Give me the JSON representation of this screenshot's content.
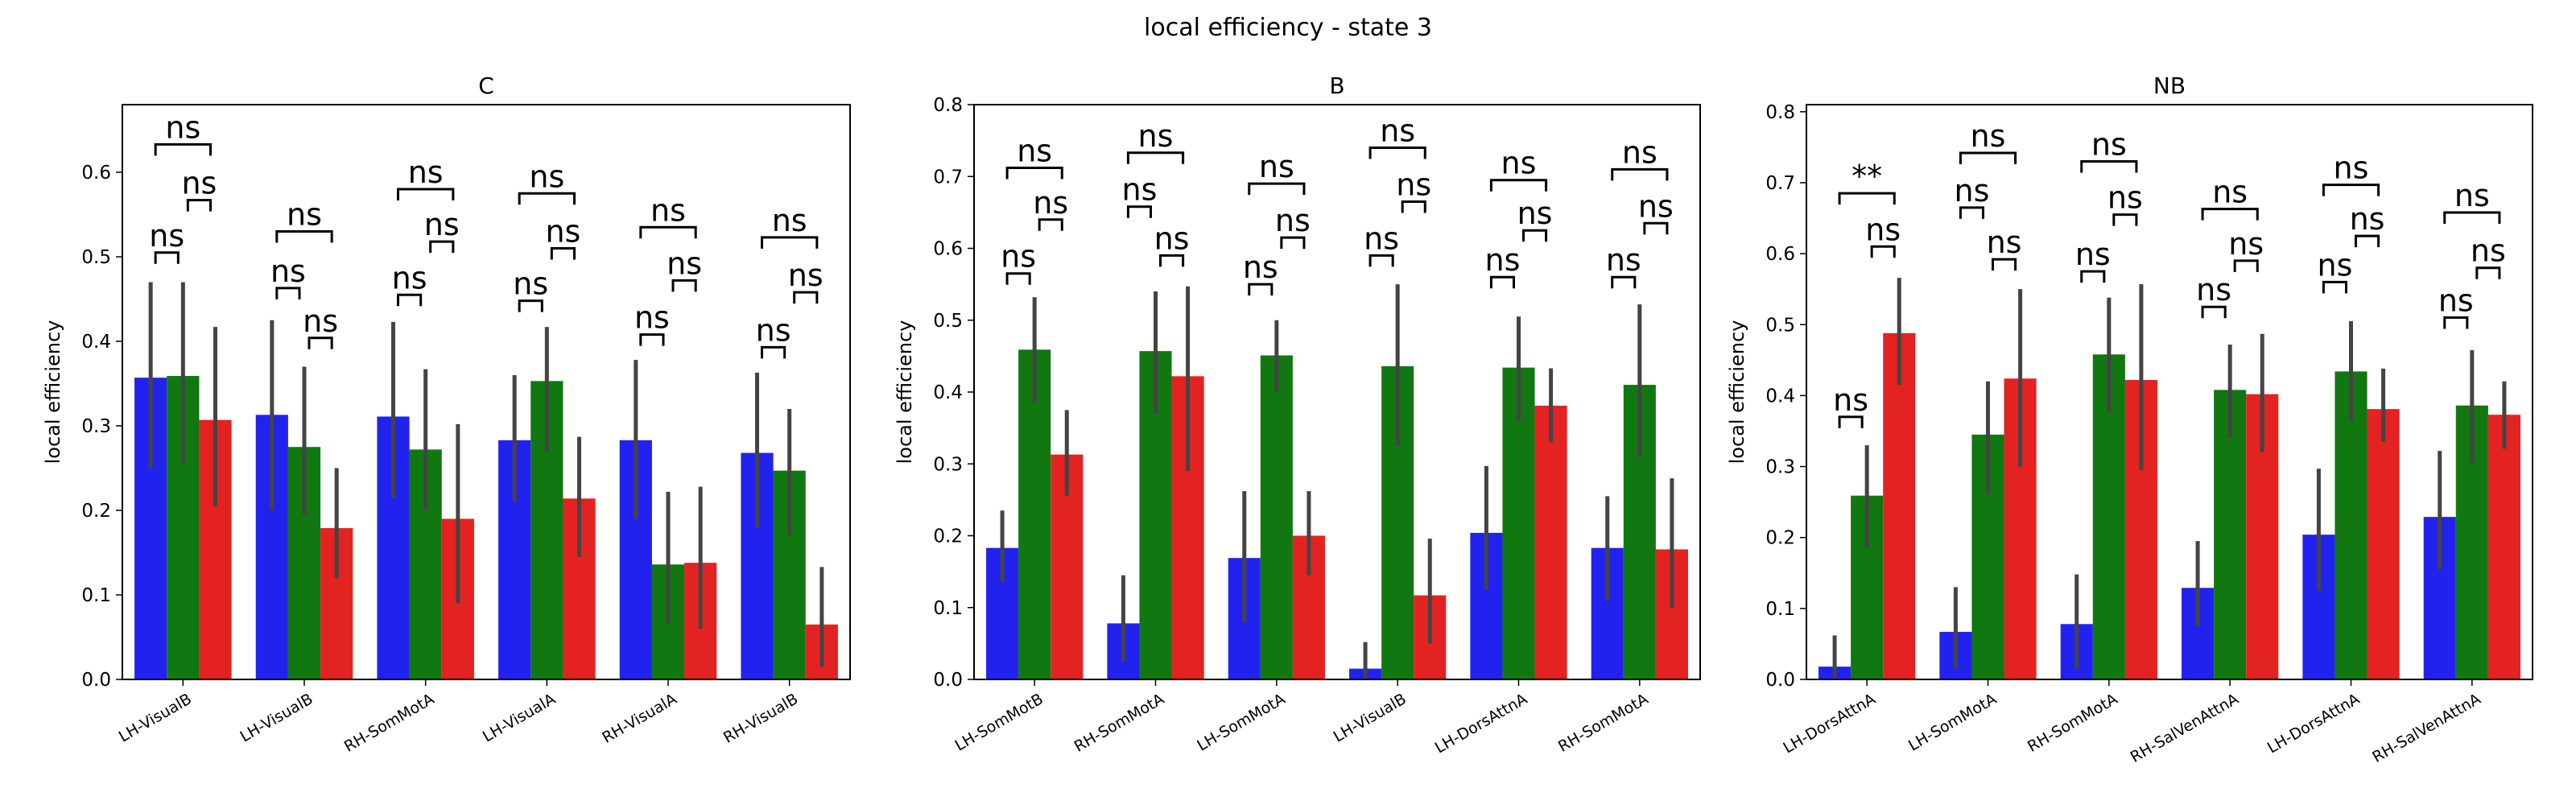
{
  "figure_title": "local efficiency - state 3",
  "colors": {
    "blue": "#2222ee",
    "green": "#117711",
    "red": "#e32222",
    "errorbar": "#444444"
  },
  "chart_data": [
    {
      "type": "bar",
      "title": "C",
      "ylabel": "local efficiency",
      "xlabel": "",
      "ylim": [
        0,
        0.68
      ],
      "yticks": [
        0.0,
        0.1,
        0.2,
        0.3,
        0.4,
        0.5,
        0.6
      ],
      "categories": [
        "LH-VisualB",
        "LH-VisualB",
        "RH-SomMotA",
        "LH-VisualA",
        "RH-VisualA",
        "RH-VisualB"
      ],
      "series": [
        {
          "color": "blue",
          "values": [
            0.357,
            0.313,
            0.311,
            0.283,
            0.283,
            0.268
          ],
          "err_low": [
            0.25,
            0.2,
            0.215,
            0.21,
            0.19,
            0.18
          ],
          "err_high": [
            0.47,
            0.425,
            0.423,
            0.36,
            0.378,
            0.363
          ]
        },
        {
          "color": "green",
          "values": [
            0.359,
            0.275,
            0.272,
            0.353,
            0.136,
            0.247
          ],
          "err_low": [
            0.255,
            0.195,
            0.2,
            0.27,
            0.065,
            0.17
          ],
          "err_high": [
            0.47,
            0.37,
            0.367,
            0.417,
            0.222,
            0.32
          ]
        },
        {
          "color": "red",
          "values": [
            0.307,
            0.179,
            0.19,
            0.214,
            0.138,
            0.065
          ],
          "err_low": [
            0.205,
            0.12,
            0.09,
            0.145,
            0.06,
            0.015
          ],
          "err_high": [
            0.417,
            0.25,
            0.302,
            0.287,
            0.228,
            0.133
          ]
        }
      ],
      "annotations": [
        {
          "group": 0,
          "from": 0,
          "to": 1,
          "label": "ns",
          "y": 0.505
        },
        {
          "group": 0,
          "from": 1,
          "to": 2,
          "label": "ns",
          "y": 0.567
        },
        {
          "group": 0,
          "from": 0,
          "to": 2,
          "label": "ns",
          "y": 0.633
        },
        {
          "group": 1,
          "from": 0,
          "to": 1,
          "label": "ns",
          "y": 0.463
        },
        {
          "group": 1,
          "from": 1,
          "to": 2,
          "label": "ns",
          "y": 0.404
        },
        {
          "group": 1,
          "from": 0,
          "to": 2,
          "label": "ns",
          "y": 0.53
        },
        {
          "group": 2,
          "from": 0,
          "to": 1,
          "label": "ns",
          "y": 0.455
        },
        {
          "group": 2,
          "from": 1,
          "to": 2,
          "label": "ns",
          "y": 0.518
        },
        {
          "group": 2,
          "from": 0,
          "to": 2,
          "label": "ns",
          "y": 0.58
        },
        {
          "group": 3,
          "from": 0,
          "to": 1,
          "label": "ns",
          "y": 0.448
        },
        {
          "group": 3,
          "from": 1,
          "to": 2,
          "label": "ns",
          "y": 0.51
        },
        {
          "group": 3,
          "from": 0,
          "to": 2,
          "label": "ns",
          "y": 0.575
        },
        {
          "group": 4,
          "from": 0,
          "to": 1,
          "label": "ns",
          "y": 0.408
        },
        {
          "group": 4,
          "from": 1,
          "to": 2,
          "label": "ns",
          "y": 0.472
        },
        {
          "group": 4,
          "from": 0,
          "to": 2,
          "label": "ns",
          "y": 0.535
        },
        {
          "group": 5,
          "from": 0,
          "to": 1,
          "label": "ns",
          "y": 0.393
        },
        {
          "group": 5,
          "from": 1,
          "to": 2,
          "label": "ns",
          "y": 0.458
        },
        {
          "group": 5,
          "from": 0,
          "to": 2,
          "label": "ns",
          "y": 0.523
        }
      ]
    },
    {
      "type": "bar",
      "title": "B",
      "ylabel": "local efficiency",
      "xlabel": "",
      "ylim": [
        0,
        0.8
      ],
      "yticks": [
        0.0,
        0.1,
        0.2,
        0.3,
        0.4,
        0.5,
        0.6,
        0.7,
        0.8
      ],
      "categories": [
        "LH-SomMotB",
        "RH-SomMotA",
        "LH-SomMotA",
        "LH-VisualB",
        "LH-DorsAttnA",
        "RH-SomMotA"
      ],
      "series": [
        {
          "color": "blue",
          "values": [
            0.183,
            0.078,
            0.169,
            0.015,
            0.204,
            0.183
          ],
          "err_low": [
            0.135,
            0.025,
            0.08,
            0.0,
            0.125,
            0.11
          ],
          "err_high": [
            0.235,
            0.145,
            0.262,
            0.052,
            0.297,
            0.255
          ]
        },
        {
          "color": "green",
          "values": [
            0.459,
            0.457,
            0.451,
            0.436,
            0.434,
            0.41
          ],
          "err_low": [
            0.385,
            0.37,
            0.4,
            0.325,
            0.36,
            0.31
          ],
          "err_high": [
            0.532,
            0.54,
            0.5,
            0.55,
            0.505,
            0.522
          ]
        },
        {
          "color": "red",
          "values": [
            0.313,
            0.422,
            0.2,
            0.117,
            0.381,
            0.181
          ],
          "err_low": [
            0.255,
            0.29,
            0.145,
            0.05,
            0.33,
            0.1
          ],
          "err_high": [
            0.375,
            0.547,
            0.262,
            0.196,
            0.433,
            0.28
          ]
        }
      ],
      "annotations": [
        {
          "group": 0,
          "from": 0,
          "to": 1,
          "label": "ns",
          "y": 0.565
        },
        {
          "group": 0,
          "from": 1,
          "to": 2,
          "label": "ns",
          "y": 0.64
        },
        {
          "group": 0,
          "from": 0,
          "to": 2,
          "label": "ns",
          "y": 0.712
        },
        {
          "group": 1,
          "from": 0,
          "to": 1,
          "label": "ns",
          "y": 0.658
        },
        {
          "group": 1,
          "from": 1,
          "to": 2,
          "label": "ns",
          "y": 0.59
        },
        {
          "group": 1,
          "from": 0,
          "to": 2,
          "label": "ns",
          "y": 0.733
        },
        {
          "group": 2,
          "from": 0,
          "to": 1,
          "label": "ns",
          "y": 0.55
        },
        {
          "group": 2,
          "from": 1,
          "to": 2,
          "label": "ns",
          "y": 0.615
        },
        {
          "group": 2,
          "from": 0,
          "to": 2,
          "label": "ns",
          "y": 0.69
        },
        {
          "group": 3,
          "from": 0,
          "to": 1,
          "label": "ns",
          "y": 0.59
        },
        {
          "group": 3,
          "from": 1,
          "to": 2,
          "label": "ns",
          "y": 0.665
        },
        {
          "group": 3,
          "from": 0,
          "to": 2,
          "label": "ns",
          "y": 0.74
        },
        {
          "group": 4,
          "from": 0,
          "to": 1,
          "label": "ns",
          "y": 0.56
        },
        {
          "group": 4,
          "from": 1,
          "to": 2,
          "label": "ns",
          "y": 0.625
        },
        {
          "group": 4,
          "from": 0,
          "to": 2,
          "label": "ns",
          "y": 0.695
        },
        {
          "group": 5,
          "from": 0,
          "to": 1,
          "label": "ns",
          "y": 0.56
        },
        {
          "group": 5,
          "from": 1,
          "to": 2,
          "label": "ns",
          "y": 0.635
        },
        {
          "group": 5,
          "from": 0,
          "to": 2,
          "label": "ns",
          "y": 0.71
        }
      ]
    },
    {
      "type": "bar",
      "title": "NB",
      "ylabel": "local efficiency",
      "xlabel": "",
      "ylim": [
        0,
        0.81
      ],
      "yticks": [
        0.0,
        0.1,
        0.2,
        0.3,
        0.4,
        0.5,
        0.6,
        0.7,
        0.8
      ],
      "categories": [
        "LH-DorsAttnA",
        "LH-SomMotA",
        "RH-SomMotA",
        "RH-SalVenAttnA",
        "LH-DorsAttnA",
        "RH-SalVenAttnA"
      ],
      "series": [
        {
          "color": "blue",
          "values": [
            0.018,
            0.067,
            0.078,
            0.129,
            0.204,
            0.229
          ],
          "err_low": [
            0.0,
            0.015,
            0.015,
            0.075,
            0.125,
            0.155
          ],
          "err_high": [
            0.062,
            0.13,
            0.148,
            0.195,
            0.297,
            0.322
          ]
        },
        {
          "color": "green",
          "values": [
            0.259,
            0.345,
            0.458,
            0.408,
            0.434,
            0.386
          ],
          "err_low": [
            0.185,
            0.26,
            0.375,
            0.34,
            0.365,
            0.305
          ],
          "err_high": [
            0.33,
            0.42,
            0.538,
            0.472,
            0.505,
            0.464
          ]
        },
        {
          "color": "red",
          "values": [
            0.488,
            0.424,
            0.422,
            0.402,
            0.381,
            0.373
          ],
          "err_low": [
            0.415,
            0.3,
            0.295,
            0.32,
            0.335,
            0.325
          ],
          "err_high": [
            0.566,
            0.55,
            0.557,
            0.487,
            0.438,
            0.42
          ]
        }
      ],
      "annotations": [
        {
          "group": 0,
          "from": 0,
          "to": 1,
          "label": "ns",
          "y": 0.37
        },
        {
          "group": 0,
          "from": 1,
          "to": 2,
          "label": "ns",
          "y": 0.61
        },
        {
          "group": 0,
          "from": 0,
          "to": 2,
          "label": "**",
          "y": 0.685
        },
        {
          "group": 1,
          "from": 0,
          "to": 1,
          "label": "ns",
          "y": 0.665
        },
        {
          "group": 1,
          "from": 1,
          "to": 2,
          "label": "ns",
          "y": 0.592
        },
        {
          "group": 1,
          "from": 0,
          "to": 2,
          "label": "ns",
          "y": 0.742
        },
        {
          "group": 2,
          "from": 0,
          "to": 1,
          "label": "ns",
          "y": 0.575
        },
        {
          "group": 2,
          "from": 1,
          "to": 2,
          "label": "ns",
          "y": 0.655
        },
        {
          "group": 2,
          "from": 0,
          "to": 2,
          "label": "ns",
          "y": 0.73
        },
        {
          "group": 3,
          "from": 0,
          "to": 1,
          "label": "ns",
          "y": 0.525
        },
        {
          "group": 3,
          "from": 1,
          "to": 2,
          "label": "ns",
          "y": 0.59
        },
        {
          "group": 3,
          "from": 0,
          "to": 2,
          "label": "ns",
          "y": 0.663
        },
        {
          "group": 4,
          "from": 0,
          "to": 1,
          "label": "ns",
          "y": 0.56
        },
        {
          "group": 4,
          "from": 1,
          "to": 2,
          "label": "ns",
          "y": 0.625
        },
        {
          "group": 4,
          "from": 0,
          "to": 2,
          "label": "ns",
          "y": 0.697
        },
        {
          "group": 5,
          "from": 0,
          "to": 1,
          "label": "ns",
          "y": 0.51
        },
        {
          "group": 5,
          "from": 1,
          "to": 2,
          "label": "ns",
          "y": 0.58
        },
        {
          "group": 5,
          "from": 0,
          "to": 2,
          "label": "ns",
          "y": 0.658
        }
      ]
    }
  ]
}
